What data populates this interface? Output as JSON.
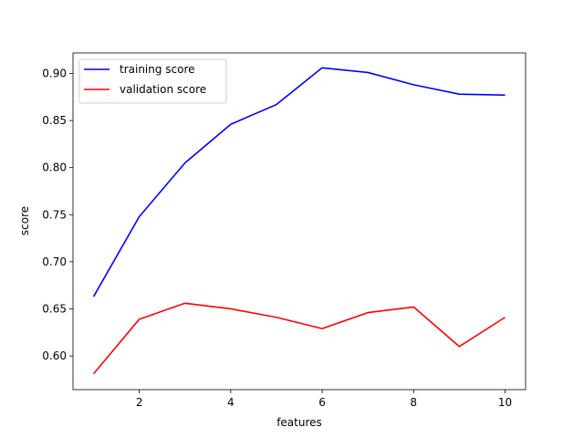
{
  "chart_data": {
    "type": "line",
    "xlabel": "features",
    "ylabel": "score",
    "xlim": [
      0.55,
      10.45
    ],
    "ylim": [
      0.5642,
      0.9218
    ],
    "x_ticks": [
      2,
      4,
      6,
      8,
      10
    ],
    "y_ticks": [
      0.6,
      0.65,
      0.7,
      0.75,
      0.8,
      0.85,
      0.9
    ],
    "legend_position": "top-left",
    "grid": false,
    "x": [
      1,
      2,
      3,
      4,
      5,
      6,
      7,
      8,
      9,
      10
    ],
    "series": [
      {
        "name": "training score",
        "color": "#0000ff",
        "values": [
          0.663,
          0.748,
          0.805,
          0.846,
          0.867,
          0.906,
          0.901,
          0.888,
          0.878,
          0.877
        ]
      },
      {
        "name": "validation score",
        "color": "#ff0000",
        "values": [
          0.581,
          0.639,
          0.656,
          0.65,
          0.641,
          0.629,
          0.646,
          0.652,
          0.61,
          0.641
        ]
      }
    ]
  }
}
